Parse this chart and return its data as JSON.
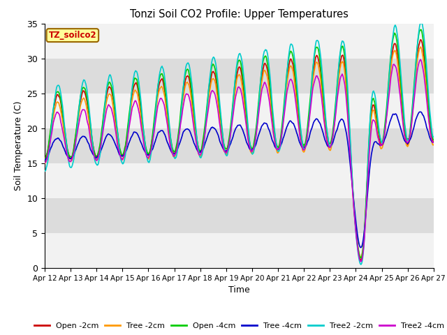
{
  "title": "Tonzi Soil CO2 Profile: Upper Temperatures",
  "ylabel": "Soil Temperature (C)",
  "xlabel": "Time",
  "box_label": "TZ_soilco2",
  "ylim": [
    0,
    35
  ],
  "series_colors": {
    "Open -2cm": "#cc0000",
    "Tree -2cm": "#ff9900",
    "Open -4cm": "#00cc00",
    "Tree -4cm": "#0000cc",
    "Tree2 -2cm": "#00cccc",
    "Tree2 -4cm": "#cc00cc"
  },
  "x_tick_labels": [
    "Apr 12",
    "Apr 13",
    "Apr 14",
    "Apr 15",
    "Apr 16",
    "Apr 17",
    "Apr 18",
    "Apr 19",
    "Apr 20",
    "Apr 21",
    "Apr 22",
    "Apr 23",
    "Apr 24",
    "Apr 25",
    "Apr 26",
    "Apr 27"
  ],
  "yticks": [
    0,
    5,
    10,
    15,
    20,
    25,
    30,
    35
  ],
  "band_colors": [
    "#f2f2f2",
    "#dcdcdc"
  ],
  "figsize": [
    6.4,
    4.8
  ],
  "dpi": 100
}
